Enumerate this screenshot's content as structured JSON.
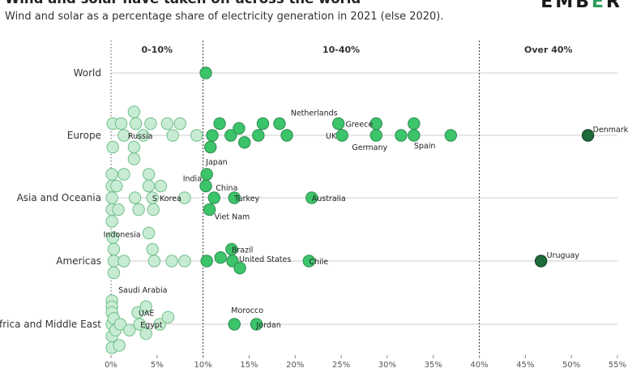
{
  "header": {
    "title": "Wind and solar have taken off across the world",
    "subtitle": "Wind and solar as a percentage share of electricity generation in 2021 (else 2020).",
    "logo_text": "EMBER"
  },
  "chart_data": {
    "type": "scatter",
    "title": "Wind and solar have taken off across the world",
    "subtitle": "Wind and solar as a percentage share of electricity generation in 2021 (else 2020).",
    "categories": [
      "World",
      "Europe",
      "Asia and Oceania",
      "Americas",
      "Africa and Middle East"
    ],
    "bands": [
      {
        "label": "0-10%",
        "from": 0,
        "to": 10
      },
      {
        "label": "10-40%",
        "from": 10,
        "to": 40
      },
      {
        "label": "Over 40%",
        "from": 40,
        "to": 55
      }
    ],
    "xlim": [
      0,
      55
    ],
    "x_ticks": [
      0,
      5,
      10,
      15,
      20,
      25,
      30,
      35,
      40,
      45,
      50,
      55
    ],
    "x_tick_labels": [
      "0%",
      "5%",
      "10%",
      "15%",
      "20%",
      "25%",
      "30%",
      "35%",
      "40%",
      "45%",
      "50%",
      "55%"
    ],
    "colors": {
      "low": "#c8ecd3",
      "mid": "#3cc46a",
      "high": "#1f6b3a",
      "stroke": "#2e8b4f",
      "grid": "#cccccc",
      "divider": "#333333"
    },
    "points": [
      {
        "category": "World",
        "x": 10.3,
        "offset": 0,
        "label": ""
      },
      {
        "category": "Europe",
        "x": 0.2,
        "offset": 1,
        "label": ""
      },
      {
        "category": "Europe",
        "x": 0.2,
        "offset": -1,
        "label": ""
      },
      {
        "category": "Europe",
        "x": 1.1,
        "offset": 1,
        "label": ""
      },
      {
        "category": "Europe",
        "x": 1.4,
        "offset": 0,
        "label": "Russia"
      },
      {
        "category": "Europe",
        "x": 2.5,
        "offset": 2,
        "label": ""
      },
      {
        "category": "Europe",
        "x": 2.7,
        "offset": 1,
        "label": ""
      },
      {
        "category": "Europe",
        "x": 2.5,
        "offset": -1,
        "label": ""
      },
      {
        "category": "Europe",
        "x": 2.5,
        "offset": -2,
        "label": ""
      },
      {
        "category": "Europe",
        "x": 3.5,
        "offset": 0,
        "label": ""
      },
      {
        "category": "Europe",
        "x": 4.3,
        "offset": 1,
        "label": ""
      },
      {
        "category": "Europe",
        "x": 6.1,
        "offset": 1,
        "label": ""
      },
      {
        "category": "Europe",
        "x": 6.7,
        "offset": 0,
        "label": ""
      },
      {
        "category": "Europe",
        "x": 7.5,
        "offset": 1,
        "label": ""
      },
      {
        "category": "Europe",
        "x": 9.3,
        "offset": 0,
        "label": ""
      },
      {
        "category": "Europe",
        "x": 10.8,
        "offset": -1,
        "label": ""
      },
      {
        "category": "Europe",
        "x": 11.0,
        "offset": 0,
        "label": ""
      },
      {
        "category": "Europe",
        "x": 11.8,
        "offset": 1,
        "label": ""
      },
      {
        "category": "Europe",
        "x": 13.0,
        "offset": 0,
        "label": ""
      },
      {
        "category": "Europe",
        "x": 13.9,
        "offset": 0.6,
        "label": ""
      },
      {
        "category": "Europe",
        "x": 14.5,
        "offset": -0.6,
        "label": ""
      },
      {
        "category": "Europe",
        "x": 16.0,
        "offset": 0,
        "label": ""
      },
      {
        "category": "Europe",
        "x": 16.5,
        "offset": 1,
        "label": ""
      },
      {
        "category": "Europe",
        "x": 18.3,
        "offset": 1,
        "label": ""
      },
      {
        "category": "Europe",
        "x": 19.1,
        "offset": 0,
        "label": ""
      },
      {
        "category": "Europe",
        "x": 24.7,
        "offset": 1,
        "label": "Netherlands"
      },
      {
        "category": "Europe",
        "x": 25.1,
        "offset": 0,
        "label": "UK"
      },
      {
        "category": "Europe",
        "x": 28.8,
        "offset": 1,
        "label": "Greece"
      },
      {
        "category": "Europe",
        "x": 28.8,
        "offset": 0,
        "label": "Germany"
      },
      {
        "category": "Europe",
        "x": 31.5,
        "offset": 0,
        "label": ""
      },
      {
        "category": "Europe",
        "x": 32.9,
        "offset": 1,
        "label": ""
      },
      {
        "category": "Europe",
        "x": 32.9,
        "offset": 0,
        "label": "Spain"
      },
      {
        "category": "Europe",
        "x": 36.9,
        "offset": 0,
        "label": ""
      },
      {
        "category": "Europe",
        "x": 51.8,
        "offset": 0,
        "label": "Denmark"
      },
      {
        "category": "Asia and Oceania",
        "x": 0.1,
        "offset": 2,
        "label": ""
      },
      {
        "category": "Asia and Oceania",
        "x": 0.1,
        "offset": 1,
        "label": ""
      },
      {
        "category": "Asia and Oceania",
        "x": 0.1,
        "offset": 0,
        "label": ""
      },
      {
        "category": "Asia and Oceania",
        "x": 0.1,
        "offset": -1,
        "label": ""
      },
      {
        "category": "Asia and Oceania",
        "x": 0.1,
        "offset": -2,
        "label": ""
      },
      {
        "category": "Asia and Oceania",
        "x": 0.6,
        "offset": 1,
        "label": ""
      },
      {
        "category": "Asia and Oceania",
        "x": 0.8,
        "offset": -1,
        "label": ""
      },
      {
        "category": "Asia and Oceania",
        "x": 1.4,
        "offset": 2,
        "label": ""
      },
      {
        "category": "Asia and Oceania",
        "x": 2.6,
        "offset": 0,
        "label": ""
      },
      {
        "category": "Asia and Oceania",
        "x": 3.0,
        "offset": -1,
        "label": ""
      },
      {
        "category": "Asia and Oceania",
        "x": 4.1,
        "offset": 2,
        "label": ""
      },
      {
        "category": "Asia and Oceania",
        "x": 4.1,
        "offset": 1,
        "label": ""
      },
      {
        "category": "Asia and Oceania",
        "x": 4.1,
        "offset": -3,
        "label": "Indonesia"
      },
      {
        "category": "Asia and Oceania",
        "x": 4.5,
        "offset": 0,
        "label": ""
      },
      {
        "category": "Asia and Oceania",
        "x": 4.6,
        "offset": -1,
        "label": ""
      },
      {
        "category": "Asia and Oceania",
        "x": 5.4,
        "offset": 1,
        "label": ""
      },
      {
        "category": "Asia and Oceania",
        "x": 8.0,
        "offset": 0,
        "label": "S Korea"
      },
      {
        "category": "Asia and Oceania",
        "x": 10.3,
        "offset": 1,
        "label": "India"
      },
      {
        "category": "Asia and Oceania",
        "x": 10.7,
        "offset": -1,
        "label": "Viet Nam"
      },
      {
        "category": "Asia and Oceania",
        "x": 11.2,
        "offset": 0,
        "label": "China"
      },
      {
        "category": "Asia and Oceania",
        "x": 10.4,
        "offset": 2,
        "label": "Japan"
      },
      {
        "category": "Asia and Oceania",
        "x": 13.4,
        "offset": 0,
        "label": "Turkey"
      },
      {
        "category": "Asia and Oceania",
        "x": 21.8,
        "offset": 0,
        "label": "Australia"
      },
      {
        "category": "Americas",
        "x": 0.2,
        "offset": 2,
        "label": ""
      },
      {
        "category": "Americas",
        "x": 0.3,
        "offset": 1,
        "label": ""
      },
      {
        "category": "Americas",
        "x": 0.3,
        "offset": 0,
        "label": ""
      },
      {
        "category": "Americas",
        "x": 0.3,
        "offset": -1,
        "label": ""
      },
      {
        "category": "Americas",
        "x": 1.4,
        "offset": 0,
        "label": ""
      },
      {
        "category": "Americas",
        "x": 4.5,
        "offset": 1,
        "label": ""
      },
      {
        "category": "Americas",
        "x": 4.7,
        "offset": 0,
        "label": ""
      },
      {
        "category": "Americas",
        "x": 6.6,
        "offset": 0,
        "label": ""
      },
      {
        "category": "Americas",
        "x": 8.0,
        "offset": 0,
        "label": ""
      },
      {
        "category": "Americas",
        "x": 10.4,
        "offset": 0,
        "label": ""
      },
      {
        "category": "Americas",
        "x": 11.9,
        "offset": 0.3,
        "label": ""
      },
      {
        "category": "Americas",
        "x": 13.1,
        "offset": 1,
        "label": "Brazil"
      },
      {
        "category": "Americas",
        "x": 13.2,
        "offset": 0,
        "label": "United States"
      },
      {
        "category": "Americas",
        "x": 14.0,
        "offset": -0.6,
        "label": ""
      },
      {
        "category": "Americas",
        "x": 21.5,
        "offset": 0,
        "label": "Chile"
      },
      {
        "category": "Americas",
        "x": 46.7,
        "offset": 0,
        "label": "Uruguay"
      },
      {
        "category": "Africa and Middle East",
        "x": 0.1,
        "offset": 2,
        "label": "Saudi Arabia"
      },
      {
        "category": "Africa and Middle East",
        "x": 0.1,
        "offset": 1.5,
        "label": ""
      },
      {
        "category": "Africa and Middle East",
        "x": 0.1,
        "offset": 1,
        "label": ""
      },
      {
        "category": "Africa and Middle East",
        "x": 0.1,
        "offset": 0,
        "label": ""
      },
      {
        "category": "Africa and Middle East",
        "x": 0.1,
        "offset": -1,
        "label": ""
      },
      {
        "category": "Africa and Middle East",
        "x": 0.1,
        "offset": -2,
        "label": ""
      },
      {
        "category": "Africa and Middle East",
        "x": 0.3,
        "offset": 0.5,
        "label": ""
      },
      {
        "category": "Africa and Middle East",
        "x": 0.5,
        "offset": -0.5,
        "label": ""
      },
      {
        "category": "Africa and Middle East",
        "x": 0.9,
        "offset": -1.8,
        "label": ""
      },
      {
        "category": "Africa and Middle East",
        "x": 1.0,
        "offset": 0,
        "label": ""
      },
      {
        "category": "Africa and Middle East",
        "x": 2.0,
        "offset": -0.5,
        "label": ""
      },
      {
        "category": "Africa and Middle East",
        "x": 2.9,
        "offset": 1,
        "label": "UAE"
      },
      {
        "category": "Africa and Middle East",
        "x": 3.1,
        "offset": 0,
        "label": "Egypt"
      },
      {
        "category": "Africa and Middle East",
        "x": 3.8,
        "offset": 1.5,
        "label": ""
      },
      {
        "category": "Africa and Middle East",
        "x": 3.8,
        "offset": -0.8,
        "label": ""
      },
      {
        "category": "Africa and Middle East",
        "x": 5.3,
        "offset": 0,
        "label": ""
      },
      {
        "category": "Africa and Middle East",
        "x": 6.2,
        "offset": 0.6,
        "label": ""
      },
      {
        "category": "Africa and Middle East",
        "x": 13.4,
        "offset": 0,
        "label": "Morocco"
      },
      {
        "category": "Africa and Middle East",
        "x": 15.8,
        "offset": 0,
        "label": "Jordan"
      }
    ]
  }
}
